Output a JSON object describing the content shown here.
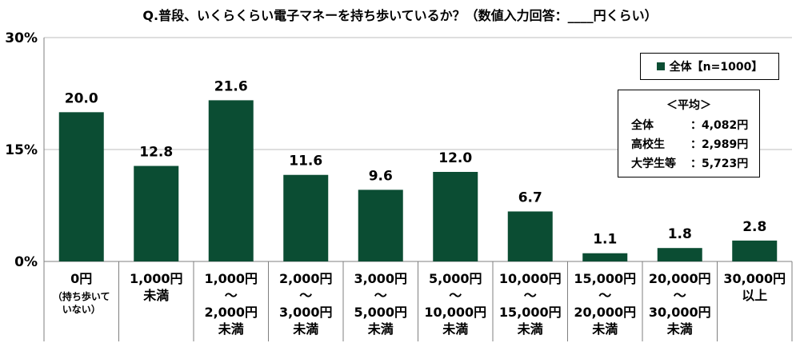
{
  "title": "Q.普段、いくらくらい電子マネーを持ち歩いているか？（数値入力回答：____円くらい）",
  "legend": "全体【n=1000】",
  "average_box": {
    "heading": "＜平均＞",
    "rows": [
      {
        "label": "全体",
        "value": "：4,082円"
      },
      {
        "label": "高校生",
        "value": "：2,989円"
      },
      {
        "label": "大学生等",
        "value": "：5,723円"
      }
    ]
  },
  "colors": {
    "bar": "#0b4d33",
    "grid": "#bdbdbd",
    "axis": "#7f7f7f"
  },
  "chart_data": {
    "type": "bar",
    "title": "Q.普段、いくらくらい電子マネーを持ち歩いているか？（数値入力回答：____円くらい）",
    "ylim": [
      0,
      30
    ],
    "yticks": [
      0,
      15,
      30
    ],
    "ytick_labels": [
      "0%",
      "15%",
      "30%"
    ],
    "grid": true,
    "legend_position": "top-right",
    "categories": [
      [
        "0円",
        "（持ち歩いて",
        "いない）"
      ],
      [
        "1,000円",
        "未満"
      ],
      [
        "1,000円",
        "～",
        "2,000円",
        "未満"
      ],
      [
        "2,000円",
        "～",
        "3,000円",
        "未満"
      ],
      [
        "3,000円",
        "～",
        "5,000円",
        "未満"
      ],
      [
        "5,000円",
        "～",
        "10,000円",
        "未満"
      ],
      [
        "10,000円",
        "～",
        "15,000円",
        "未満"
      ],
      [
        "15,000円",
        "～",
        "20,000円",
        "未満"
      ],
      [
        "20,000円",
        "～",
        "30,000円",
        "未満"
      ],
      [
        "30,000円",
        "以上"
      ]
    ],
    "series": [
      {
        "name": "全体【n=1000】",
        "values": [
          20.0,
          12.8,
          21.6,
          11.6,
          9.6,
          12.0,
          6.7,
          1.1,
          1.8,
          2.8
        ],
        "labels": [
          "20.0",
          "12.8",
          "21.6",
          "11.6",
          "9.6",
          "12.0",
          "6.7",
          "1.1",
          "1.8",
          "2.8"
        ]
      }
    ]
  }
}
